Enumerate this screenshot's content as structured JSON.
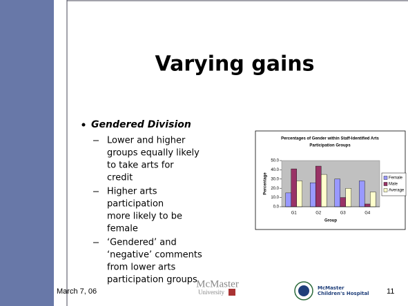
{
  "title": "Varying gains",
  "bullet": {
    "heading": "Gendered Division",
    "items": [
      [
        "Lower and higher",
        "groups equally likely",
        "to take arts for",
        "credit"
      ],
      [
        "Higher arts",
        "participation",
        "more likely to be",
        "female"
      ],
      [
        "‘Gendered’ and",
        "‘negative’ comments",
        "from lower arts",
        "participation groups"
      ]
    ]
  },
  "chart_data": {
    "type": "bar",
    "title": [
      "Percentages of Gender within Staff-Identified Arts",
      "Participation Groups"
    ],
    "x_label": "Group",
    "y_label": "Percentage",
    "categories": [
      "G1",
      "G2",
      "G3",
      "G4"
    ],
    "series": [
      {
        "name": "Female",
        "color": "#9999ff",
        "values": [
          15,
          26,
          30,
          28
        ]
      },
      {
        "name": "Male",
        "color": "#993366",
        "values": [
          41,
          44,
          10,
          3
        ]
      },
      {
        "name": "Average",
        "color": "#ffffcc",
        "values": [
          28,
          35,
          20,
          16
        ]
      }
    ],
    "ylim": [
      0,
      50
    ],
    "yticks": [
      {
        "value": 0,
        "label": "0.0"
      },
      {
        "value": 10,
        "label": "10.0"
      },
      {
        "value": 20,
        "label": "20.0"
      },
      {
        "value": 30,
        "label": "30.0"
      },
      {
        "value": 40,
        "label": "40.0"
      },
      {
        "value": 50,
        "label": "50.0"
      }
    ],
    "legend": "right"
  },
  "footer": {
    "date": "March 7, 06",
    "logo1": "McMaster",
    "logo1_sub": "University",
    "logo2_line1": "McMaster",
    "logo2_line2": "Children's Hospital",
    "page": "11"
  }
}
